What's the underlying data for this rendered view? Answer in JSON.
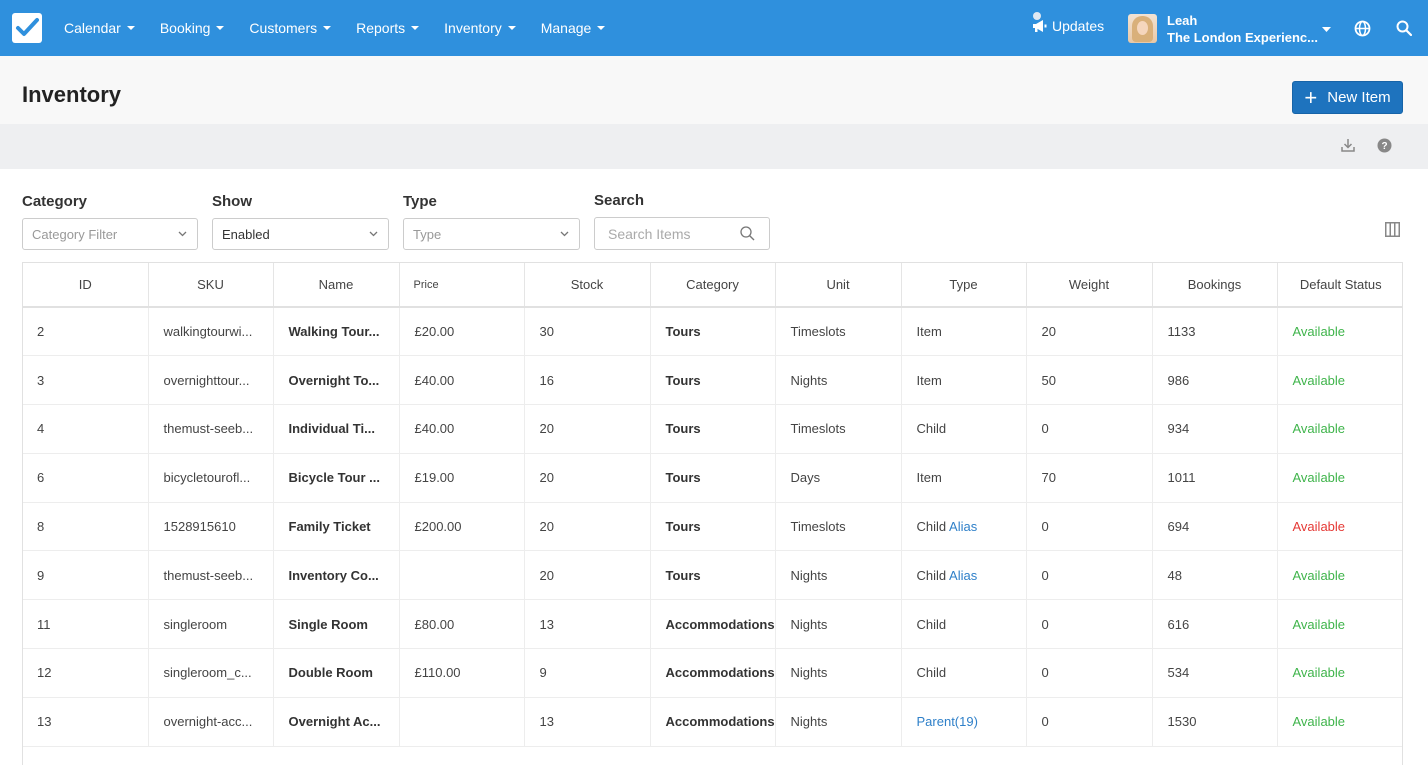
{
  "nav": {
    "menu": [
      "Calendar",
      "Booking",
      "Customers",
      "Reports",
      "Inventory",
      "Manage"
    ],
    "updates_label": "Updates",
    "user_name": "Leah",
    "user_company": "The London Experienc..."
  },
  "header": {
    "title": "Inventory",
    "new_item_label": "New Item"
  },
  "filters": {
    "category_label": "Category",
    "category_placeholder": "Category Filter",
    "show_label": "Show",
    "show_value": "Enabled",
    "type_label": "Type",
    "type_placeholder": "Type",
    "search_label": "Search",
    "search_placeholder": "Search Items"
  },
  "table": {
    "columns": [
      "ID",
      "SKU",
      "Name",
      "Price",
      "Stock",
      "Category",
      "Unit",
      "Type",
      "Weight",
      "Bookings",
      "Default Status"
    ],
    "rows": [
      {
        "id": "2",
        "sku": "walkingtourwi...",
        "name": "Walking Tour...",
        "price": "£20.00",
        "stock": "30",
        "category": "Tours",
        "unit": "Timeslots",
        "type": "Item",
        "type_link": "",
        "weight": "20",
        "bookings": "1133",
        "status": "Available",
        "status_color": "green"
      },
      {
        "id": "3",
        "sku": "overnighttour...",
        "name": "Overnight To...",
        "price": "£40.00",
        "stock": "16",
        "category": "Tours",
        "unit": "Nights",
        "type": "Item",
        "type_link": "",
        "weight": "50",
        "bookings": "986",
        "status": "Available",
        "status_color": "green"
      },
      {
        "id": "4",
        "sku": "themust-seeb...",
        "name": "Individual Ti...",
        "price": "£40.00",
        "stock": "20",
        "category": "Tours",
        "unit": "Timeslots",
        "type": "Child",
        "type_link": "",
        "weight": "0",
        "bookings": "934",
        "status": "Available",
        "status_color": "green"
      },
      {
        "id": "6",
        "sku": "bicycletourofl...",
        "name": "Bicycle Tour ...",
        "price": "£19.00",
        "stock": "20",
        "category": "Tours",
        "unit": "Days",
        "type": "Item",
        "type_link": "",
        "weight": "70",
        "bookings": "1011",
        "status": "Available",
        "status_color": "green"
      },
      {
        "id": "8",
        "sku": "1528915610",
        "name": "Family Ticket",
        "price": "£200.00",
        "stock": "20",
        "category": "Tours",
        "unit": "Timeslots",
        "type": "Child",
        "type_link": "Alias",
        "weight": "0",
        "bookings": "694",
        "status": "Available",
        "status_color": "red"
      },
      {
        "id": "9",
        "sku": "themust-seeb...",
        "name": "Inventory Co...",
        "price": "",
        "stock": "20",
        "category": "Tours",
        "unit": "Nights",
        "type": "Child",
        "type_link": "Alias",
        "weight": "0",
        "bookings": "48",
        "status": "Available",
        "status_color": "green"
      },
      {
        "id": "11",
        "sku": "singleroom",
        "name": "Single Room",
        "price": "£80.00",
        "stock": "13",
        "category": "Accommodations",
        "unit": "Nights",
        "type": "Child",
        "type_link": "",
        "weight": "0",
        "bookings": "616",
        "status": "Available",
        "status_color": "green"
      },
      {
        "id": "12",
        "sku": "singleroom_c...",
        "name": "Double Room",
        "price": "£110.00",
        "stock": "9",
        "category": "Accommodations",
        "unit": "Nights",
        "type": "Child",
        "type_link": "",
        "weight": "0",
        "bookings": "534",
        "status": "Available",
        "status_color": "green"
      },
      {
        "id": "13",
        "sku": "overnight-acc...",
        "name": "Overnight Ac...",
        "price": "",
        "stock": "13",
        "category": "Accommodations",
        "unit": "Nights",
        "type": "",
        "type_link": "Parent(19)",
        "weight": "0",
        "bookings": "1530",
        "status": "Available",
        "status_color": "green"
      }
    ]
  },
  "colors": {
    "navbar": "#2f90dd",
    "primary_button": "#1e73be",
    "available_green": "#3fb44b",
    "available_red": "#e53935",
    "link_blue": "#2f80c9"
  },
  "icons": [
    "checkbox-logo-icon",
    "megaphone-icon",
    "globe-icon",
    "search-icon",
    "plus-icon",
    "download-icon",
    "help-icon",
    "chevron-down-icon",
    "columns-icon"
  ]
}
